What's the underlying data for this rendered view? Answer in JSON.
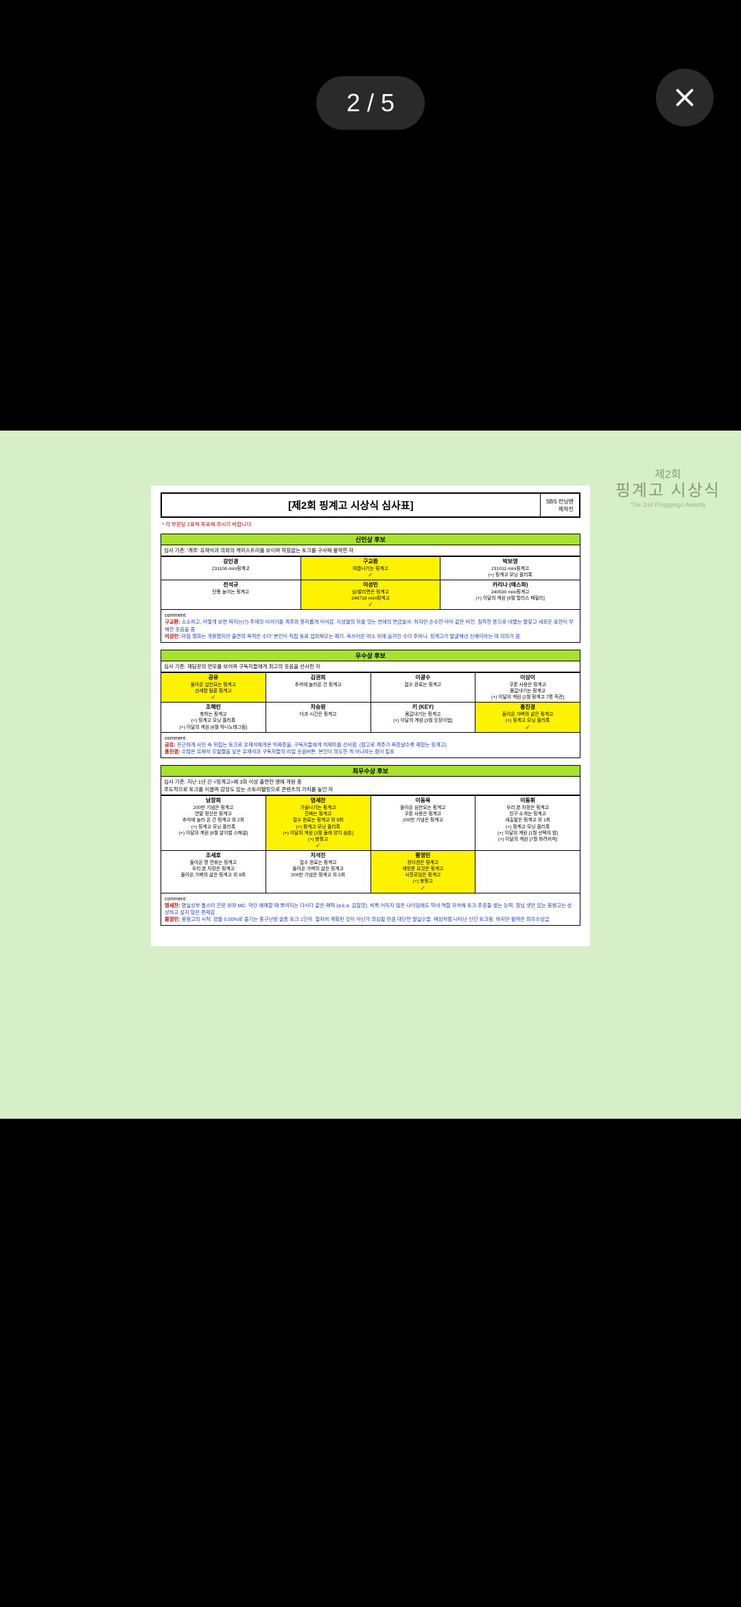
{
  "counter": "2 / 5",
  "watermark": {
    "line1": "제2회",
    "line2": "핑계고 시상식",
    "line3": "The 2nd Pinggyego Awards"
  },
  "doc": {
    "title": "[제2회 핑계고 시상식 심사표]",
    "meta1": "SBS 런닝맨",
    "meta2": "제작진",
    "note": "* 각 부문당 2표씩 투표해 주시기 바랍니다."
  },
  "sec1": {
    "title": "신인상 후보",
    "criteria": "심사 기준: '계주' 유재석과 의외의 케미스트리를 보이며 막힘없는 토크를 구사해 활약한 자",
    "r1": [
      {
        "name": "강인경",
        "desc": "231108 mini핑계고",
        "hl": false
      },
      {
        "name": "구교환",
        "desc": "여름나기는 핑계고",
        "hl": true,
        "check": true
      },
      {
        "name": "박보영",
        "desc": "231011 mini핑계고<br>(+) 핑계고 모닝 플리록",
        "hl": false
      }
    ],
    "r2": [
      {
        "name": "전석규",
        "desc": "단풍 놀이는 핑계고",
        "hl": false
      },
      {
        "name": "이성민",
        "desc": "남/발리면은 핑계고<br>240718 mini핑계고",
        "hl": true,
        "check": true
      },
      {
        "name": "카리나 (에스파)",
        "desc": "240530 mini핑계고<br>(+) 이달의 계원 [9월 할리스 패밀리]",
        "hl": false
      }
    ],
    "comments": [
      {
        "name": "구교환",
        "text": "소소하고, 어떻게 보면 퍼지는(?) 주제의 이야기를 계주와 흥미롭게 이어감. 지성열의 뒤를 잇는 연애의 연금술사. 하지만 순수한 아이 같은 비전. 침착한 톤으로 내뱉는 말갛고 새로운 표현이 무해한 웃음을 줌"
      },
      {
        "name": "이성민",
        "text": "마침 영화는 개봉했지만 출연의 목적은 수다' 본인이 직접 동료 섭외해오는 패기. 쑥쓰러운 미소 뒤에 숨겨진 수다 주머니. 핑계고가 발굴해낸 신예이라는 데 의의가 큼"
      }
    ]
  },
  "sec2": {
    "title": "우수상 후보",
    "criteria": "심사 기준: 재담꾼의 면모를 보이며 구독자들에게 최고의 웃음을 선사한 자",
    "r1": [
      {
        "name": "공유",
        "desc": "돌아온 십만요는 핑계고<br>선세함 탐론 핑계고",
        "hl": true,
        "check": true
      },
      {
        "name": "김권희",
        "desc": "추석에 놀라온 건 핑계고",
        "hl": false
      },
      {
        "name": "이광수",
        "desc": "접수 완료는 핑계고",
        "hl": false
      },
      {
        "name": "이상이",
        "desc": "쿠폰 사용은 핑계고<br>몸값내기는 핑계고<br>(+) 이달의 계원 [2월 핑계고 7명 직관]",
        "hl": false
      }
    ],
    "r2": [
      {
        "name": "조해린",
        "desc": "축하는 핑계고<br>(+) 핑계고 모닝 플리록<br>(+) 이달의 계원 [6월 하니노태그림]",
        "hl": false
      },
      {
        "name": "차승원",
        "desc": "다과 시간은 핑계고",
        "hl": false
      },
      {
        "name": "키 (KEY)",
        "desc": "몸값내기는 핑계고<br>(+) 이달의 계원 [3월 웃장이법]",
        "hl": false
      },
      {
        "name": "홍진경",
        "desc": "돌아온 가벼의 삶은 핑계고<br>(+) 핑계고 모닝 플리록",
        "hl": true,
        "check": true
      }
    ],
    "comments": [
      {
        "name": "공유",
        "text": "은근하게 사진 속 뒤집는 토크로 유재석에게온 빅짜증을, 구독자들에게 빅재미를 선사함. (참고로 계주가 짜증날수록 재밌는 핑계고)"
      },
      {
        "name": "홍진경",
        "text": "수많은 유재석 오열짤을 낳은 유재석과 구독자들의 리얼 웃음버튼. 본인이 의도한 게 아니라는 점이 킬포"
      }
    ]
  },
  "sec3": {
    "title": "최우수상 후보",
    "criteria": "심사 기준: 지난 1년 간 <핑계고>에 3회 이상 출연한 맹에 게원 중<br>주도적으로 토크를 이끌며 감성도 있는 스토리텔링으로 콘텐츠의 가치를 높인 자",
    "r1": [
      {
        "name": "남창희",
        "desc": "200만 기념은 핑계고<br>연말 정산은 핑계고<br>추석에 놀러 온 건 핑계고 외 2회<br>(+) 핑계고 모닝 플리록<br>(+) 이달의 계원 [8월 알이벌 스페셜]",
        "hl": false
      },
      {
        "name": "영세찬",
        "desc": "가을나기는 핑계고<br>진짜는 핑계고<br>접수 완료는 핑계고 외 5회<br>(+) 핑계고 모닝 플리록<br>(+) 이달의 계원 [3월 둘레 양치 삼촌]<br>(+) 붕찡고",
        "hl": true,
        "check": true
      },
      {
        "name": "이동욱",
        "desc": "돌아온 심만요는 핑계고<br>쿠폰 사용은 핑계고<br>200만 기념은 핑계고",
        "hl": false
      },
      {
        "name": "이동휘",
        "desc": "우리 본 차장은 핑계고<br>친구 소개는 핑계고<br>새출발은 핑계고 외 1회<br>(+) 핑계고 모닝 플리록<br>(+) 이달의 계원 [1월 선택의 밤]<br>(+) 이달의 계원 [7월 화려커쳐]",
        "hl": false
      }
    ],
    "r2": [
      {
        "name": "조세호",
        "desc": "돌아온 명 연휴는 핑계고<br>우리 본 차장은 핑계고<br>돌아온 가벼의 삶은 핑계고 외 8회",
        "hl": false
      },
      {
        "name": "지석진",
        "desc": "접수 완료는 핑계고<br>돌아온 가벼의 삶은 핑계고<br>200만 기념은 핑계고 외 5회",
        "hl": false
      },
      {
        "name": "황정민",
        "desc": "창이겐은 핑계고<br>재방문 요것은 핑계고<br>사진모임은 핑계고<br>(+) 붕찡고",
        "hl": true,
        "check": true
      },
      {
        "name": "",
        "desc": "",
        "hl": false
      }
    ],
    "comments": [
      {
        "name": "영세찬",
        "text": "명실상부 톱스타 전문 보좌 MC. 약간 애매할 때 뿌려지는 다시다 같은 매력 (a.k.a. 김칠맛). 비록 어리지 않은 나이임에도 막내 역할 자처해 토크 주춧돌 쌓는 능력. 형님 셋만 있는 붕찡고는 상상하고 싶지 않은 존재감"
      },
      {
        "name": "황정민",
        "text": "붕찡고의 시작. 양율 0.00%로 즐기는 중구난방 술톤 토크 1인자. 철저히 계획된 것이 아닌가 의심될 만큼 대단한 말실수들. 해성처럼 나타난 신인 토크왕. 하지만 활약은 최우수상급"
      }
    ]
  }
}
